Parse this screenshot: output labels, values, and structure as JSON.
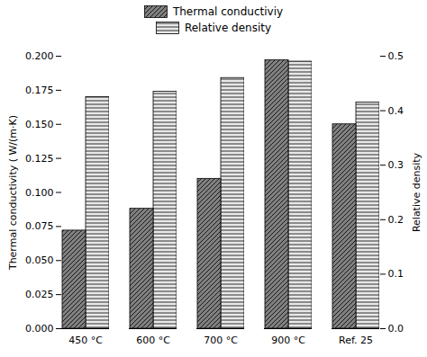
{
  "chart_data": {
    "type": "bar",
    "categories": [
      "450 °C",
      "600 °C",
      "700 °C",
      "900 °C",
      "Ref. 25"
    ],
    "series": [
      {
        "name": "Thermal conductiviy",
        "color": "#808080",
        "values": [
          0.072,
          0.088,
          0.11,
          0.197,
          0.15
        ]
      },
      {
        "name": "Relative density",
        "color": "#e8e8e8",
        "values": [
          0.425,
          0.435,
          0.46,
          0.49,
          0.415
        ],
        "axis": "y2"
      }
    ],
    "ylabel": "Thermal conductivity ( W/(m·K)",
    "y2label": "Relative density",
    "ylim": [
      0.0,
      0.2
    ],
    "yticks": [
      {
        "value": 0.0,
        "label": "0.000"
      },
      0.025,
      {
        "value": 0.05,
        "label": "0.050"
      },
      0.075,
      {
        "value": 0.1,
        "label": "0.100"
      },
      0.125,
      {
        "value": 0.15,
        "label": "0.150"
      },
      0.175,
      {
        "value": 0.2,
        "label": "0.200"
      }
    ],
    "y2lim": [
      0.0,
      0.5
    ],
    "y2ticks": [
      {
        "value": 0.0,
        "label": "0.0"
      },
      0.1,
      0.2,
      0.3,
      0.4,
      0.5
    ],
    "grid": false,
    "legend": "top"
  }
}
